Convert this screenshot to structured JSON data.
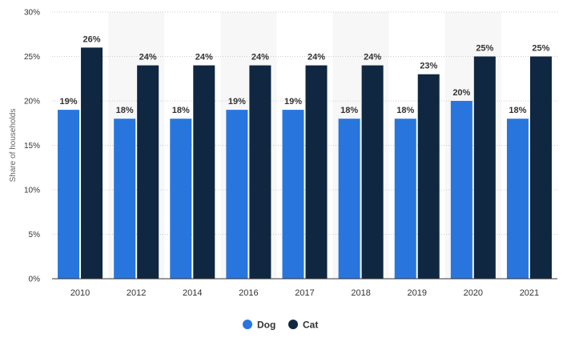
{
  "colors": {
    "dog": "#2876dd",
    "cat": "#0f2741",
    "band": "#f7f7f7",
    "grid": "#cccccc",
    "axis": "#333333"
  },
  "chart_data": {
    "type": "bar",
    "categories": [
      "2010",
      "2012",
      "2014",
      "2016",
      "2017",
      "2018",
      "2019",
      "2020",
      "2021"
    ],
    "series": [
      {
        "name": "Dog",
        "values": [
          19,
          18,
          18,
          19,
          19,
          18,
          18,
          20,
          18
        ],
        "labels": [
          "19%",
          "18%",
          "18%",
          "19%",
          "19%",
          "18%",
          "18%",
          "20%",
          "18%"
        ]
      },
      {
        "name": "Cat",
        "values": [
          26,
          24,
          24,
          24,
          24,
          24,
          23,
          25,
          25
        ],
        "labels": [
          "26%",
          "24%",
          "24%",
          "24%",
          "24%",
          "24%",
          "23%",
          "25%",
          "25%"
        ]
      }
    ],
    "ylabel": "Share of households",
    "ylim": [
      0,
      30
    ],
    "yticks": [
      0,
      5,
      10,
      15,
      20,
      25,
      30
    ],
    "ytick_labels": [
      "0%",
      "5%",
      "10%",
      "15%",
      "20%",
      "25%",
      "30%"
    ],
    "grid": true,
    "legend_position": "bottom-center"
  }
}
